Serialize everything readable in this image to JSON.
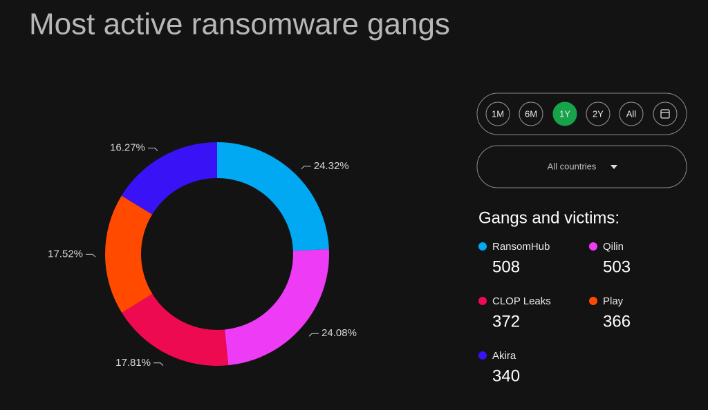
{
  "chart_data": {
    "type": "pie",
    "title": "Most active ransomware gangs",
    "categories": [
      "RansomHub",
      "Qilin",
      "CLOP Leaks",
      "Play",
      "Akira"
    ],
    "values": [
      24.32,
      24.08,
      17.81,
      17.52,
      16.27
    ],
    "value_labels": [
      "24.32%",
      "24.08%",
      "17.81%",
      "17.52%",
      "16.27%"
    ],
    "colors": [
      "#00a9f2",
      "#ee3cf6",
      "#ee0a50",
      "#ff4a00",
      "#3a12f6"
    ],
    "donut": true,
    "legend_title": "Gangs and victims:",
    "victims": [
      508,
      503,
      372,
      366,
      340
    ]
  },
  "controls": {
    "ranges": [
      "1M",
      "6M",
      "1Y",
      "2Y",
      "All"
    ],
    "selected": "1Y",
    "country_filter": "All countries"
  }
}
